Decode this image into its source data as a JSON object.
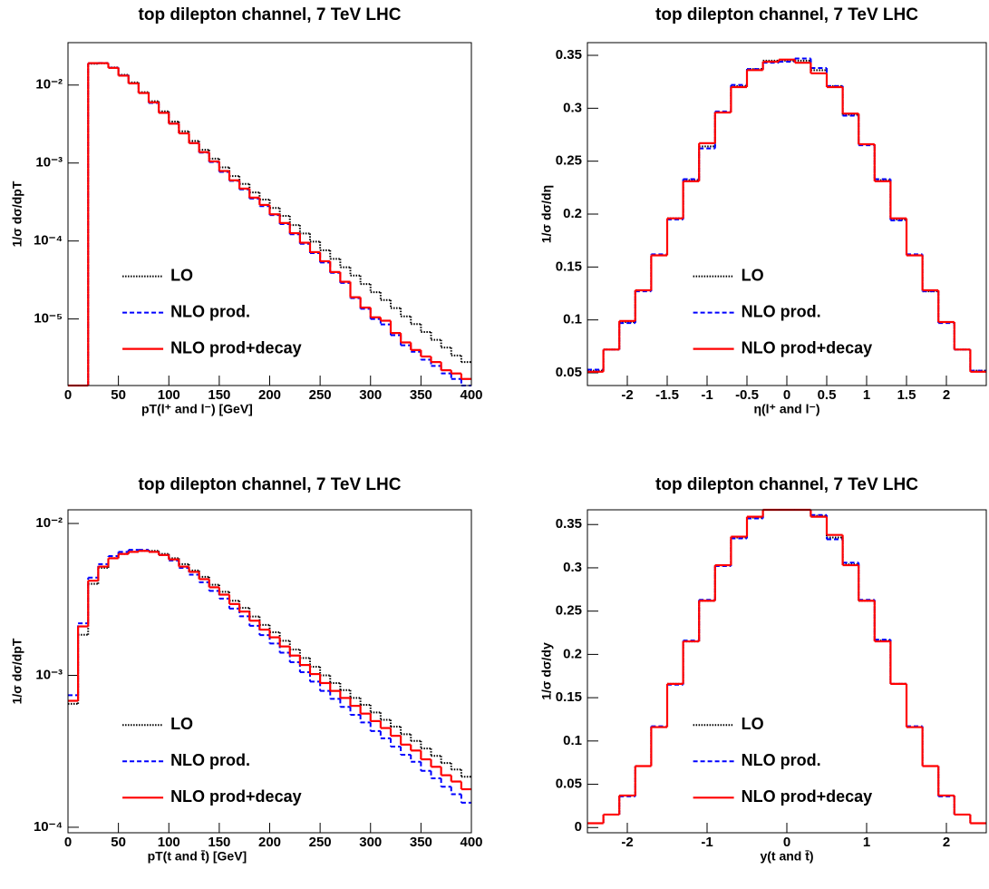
{
  "chart_data": [
    {
      "type": "histogram",
      "title": "top dilepton channel, 7 TeV LHC",
      "xlabel": "pT(l⁺ and l⁻) [GeV]",
      "ylabel": "1/σ dσ/dpT",
      "log_y": true,
      "legend": "lower-left",
      "xlim": [
        0,
        400
      ],
      "xticks": [
        0,
        50,
        100,
        150,
        200,
        250,
        300,
        350,
        400
      ],
      "ylim": [
        1.4e-06,
        0.035
      ],
      "yticks": [
        {
          "value": 1e-05,
          "label": "10⁻⁵"
        },
        {
          "value": 0.0001,
          "label": "10⁻⁴"
        },
        {
          "value": 0.001,
          "label": "10⁻³"
        },
        {
          "value": 0.01,
          "label": "10⁻²"
        }
      ],
      "bins": [
        0,
        10,
        20,
        30,
        40,
        50,
        60,
        70,
        80,
        90,
        100,
        110,
        120,
        130,
        140,
        150,
        160,
        170,
        180,
        190,
        200,
        210,
        220,
        230,
        240,
        250,
        260,
        270,
        280,
        290,
        300,
        310,
        320,
        330,
        340,
        350,
        360,
        370,
        380,
        390,
        400
      ],
      "series": [
        {
          "name": "LO",
          "color": "#000000",
          "style": "dotted",
          "values": [
            0,
            0,
            0.0188,
            0.019,
            0.0168,
            0.0135,
            0.0108,
            0.0081,
            0.0062,
            0.0046,
            0.0034,
            0.00255,
            0.00192,
            0.00148,
            0.00114,
            0.00088,
            0.00068,
            0.00054,
            0.00042,
            0.00034,
            0.000265,
            0.00021,
            0.00016,
            0.000125,
            9.8e-05,
            7.6e-05,
            5.9e-05,
            4.6e-05,
            3.6e-05,
            2.8e-05,
            2.2e-05,
            1.75e-05,
            1.38e-05,
            1.08e-05,
            8.6e-06,
            6.8e-06,
            5.4e-06,
            4.3e-06,
            3.4e-06,
            2.8e-06
          ]
        },
        {
          "name": "NLO prod.",
          "color": "#0000ff",
          "style": "dashed",
          "values": [
            0,
            0,
            0.019,
            0.0192,
            0.0167,
            0.0133,
            0.0105,
            0.0079,
            0.0059,
            0.0044,
            0.0032,
            0.0024,
            0.0018,
            0.00136,
            0.00103,
            0.00077,
            0.00059,
            0.00046,
            0.00035,
            0.00028,
            0.000215,
            0.000165,
            0.000122,
            9.2e-05,
            7e-05,
            5.3e-05,
            3.9e-05,
            2.9e-05,
            1.85e-05,
            1.35e-05,
            1e-05,
            8.5e-06,
            6.2e-06,
            4.6e-06,
            3.8e-06,
            3e-06,
            2.5e-06,
            2e-06,
            1.7e-06,
            1.4e-06
          ]
        },
        {
          "name": "NLO prod+decay",
          "color": "#ff0000",
          "style": "solid",
          "values": [
            0,
            0,
            0.0191,
            0.0191,
            0.0166,
            0.0132,
            0.0105,
            0.0079,
            0.006,
            0.0044,
            0.0032,
            0.0024,
            0.0018,
            0.00138,
            0.00105,
            0.00079,
            0.0006,
            0.00047,
            0.00036,
            0.00029,
            0.00022,
            0.00017,
            0.000126,
            9.5e-05,
            7.2e-05,
            5.5e-05,
            4e-05,
            3e-05,
            1.9e-05,
            1.4e-05,
            1.05e-05,
            9.5e-06,
            6.6e-06,
            5e-06,
            4e-06,
            3.3e-06,
            2.8e-06,
            2.2e-06,
            2e-06,
            1.7e-06
          ]
        }
      ]
    },
    {
      "type": "histogram",
      "title": "top dilepton channel, 7 TeV LHC",
      "xlabel": "η(l⁺ and l⁻)",
      "ylabel": "1/σ dσ/dη",
      "log_y": false,
      "legend": "lower-center",
      "xlim": [
        -2.5,
        2.5
      ],
      "xticks": [
        -2,
        -1.5,
        -1,
        -0.5,
        0,
        0.5,
        1,
        1.5,
        2
      ],
      "ylim": [
        0.038,
        0.362
      ],
      "yticks": [
        0.05,
        0.1,
        0.15,
        0.2,
        0.25,
        0.3,
        0.35
      ],
      "bins": [
        -2.5,
        -2.3,
        -2.1,
        -1.9,
        -1.7,
        -1.5,
        -1.3,
        -1.1,
        -0.9,
        -0.7,
        -0.5,
        -0.3,
        -0.1,
        0.1,
        0.3,
        0.5,
        0.7,
        0.9,
        1.1,
        1.3,
        1.5,
        1.7,
        1.9,
        2.1,
        2.3,
        2.5
      ],
      "series": [
        {
          "name": "LO",
          "color": "#000000",
          "style": "dotted",
          "values": [
            0.052,
            0.072,
            0.098,
            0.128,
            0.161,
            0.196,
            0.232,
            0.264,
            0.296,
            0.321,
            0.337,
            0.345,
            0.345,
            0.345,
            0.336,
            0.321,
            0.294,
            0.266,
            0.232,
            0.195,
            0.161,
            0.127,
            0.098,
            0.072,
            0.052
          ]
        },
        {
          "name": "NLO prod.",
          "color": "#0000ff",
          "style": "dashed",
          "values": [
            0.053,
            0.072,
            0.097,
            0.127,
            0.162,
            0.195,
            0.233,
            0.262,
            0.297,
            0.322,
            0.337,
            0.343,
            0.344,
            0.347,
            0.338,
            0.321,
            0.293,
            0.265,
            0.233,
            0.194,
            0.162,
            0.127,
            0.097,
            0.072,
            0.052
          ]
        },
        {
          "name": "NLO prod+decay",
          "color": "#ff0000",
          "style": "solid",
          "values": [
            0.051,
            0.072,
            0.099,
            0.128,
            0.161,
            0.196,
            0.231,
            0.267,
            0.296,
            0.32,
            0.336,
            0.344,
            0.346,
            0.343,
            0.333,
            0.32,
            0.295,
            0.266,
            0.231,
            0.196,
            0.161,
            0.128,
            0.098,
            0.072,
            0.051
          ]
        }
      ]
    },
    {
      "type": "histogram",
      "title": "top dilepton channel, 7 TeV LHC",
      "xlabel": "pT(t and t̄) [GeV]",
      "ylabel": "1/σ dσ/dpT",
      "log_y": true,
      "legend": "lower-left",
      "xlim": [
        0,
        400
      ],
      "xticks": [
        0,
        50,
        100,
        150,
        200,
        250,
        300,
        350,
        400
      ],
      "ylim": [
        9.2e-05,
        0.0123
      ],
      "yticks": [
        {
          "value": 0.0001,
          "label": "10⁻⁴"
        },
        {
          "value": 0.001,
          "label": "10⁻³"
        },
        {
          "value": 0.01,
          "label": "10⁻²"
        }
      ],
      "bins": [
        0,
        10,
        20,
        30,
        40,
        50,
        60,
        70,
        80,
        90,
        100,
        110,
        120,
        130,
        140,
        150,
        160,
        170,
        180,
        190,
        200,
        210,
        220,
        230,
        240,
        250,
        260,
        270,
        280,
        290,
        300,
        310,
        320,
        330,
        340,
        350,
        360,
        370,
        380,
        390,
        400
      ],
      "series": [
        {
          "name": "LO",
          "color": "#000000",
          "style": "dotted",
          "values": [
            0.00065,
            0.00185,
            0.004,
            0.0051,
            0.0059,
            0.0063,
            0.0065,
            0.0066,
            0.0066,
            0.0063,
            0.0059,
            0.0054,
            0.0049,
            0.00445,
            0.00395,
            0.00355,
            0.0031,
            0.00278,
            0.00244,
            0.00215,
            0.00192,
            0.00169,
            0.00148,
            0.0013,
            0.00114,
            0.001,
            0.00089,
            0.0008,
            0.00071,
            0.00064,
            0.00057,
            0.00051,
            0.00046,
            0.00041,
            0.00037,
            0.00033,
            0.000295,
            0.000265,
            0.00024,
            0.000215
          ]
        },
        {
          "name": "NLO prod.",
          "color": "#0000ff",
          "style": "dashed",
          "values": [
            0.00074,
            0.0022,
            0.0044,
            0.0054,
            0.0061,
            0.0065,
            0.0067,
            0.0067,
            0.0065,
            0.0062,
            0.0057,
            0.0051,
            0.0046,
            0.0041,
            0.0036,
            0.0032,
            0.00275,
            0.00245,
            0.00212,
            0.00184,
            0.00162,
            0.00141,
            0.00122,
            0.00105,
            0.00091,
            0.00079,
            0.0007,
            0.00062,
            0.00055,
            0.00049,
            0.00043,
            0.000385,
            0.00034,
            0.0003,
            0.00027,
            0.000235,
            0.00021,
            0.000185,
            0.000165,
            0.000145
          ]
        },
        {
          "name": "NLO prod+decay",
          "color": "#ff0000",
          "style": "solid",
          "values": [
            0.00068,
            0.0021,
            0.0042,
            0.0052,
            0.0059,
            0.0063,
            0.0065,
            0.0066,
            0.0065,
            0.0062,
            0.0058,
            0.0052,
            0.0048,
            0.0043,
            0.0038,
            0.0034,
            0.00295,
            0.00263,
            0.00229,
            0.002,
            0.00178,
            0.00155,
            0.00135,
            0.00117,
            0.00102,
            0.00089,
            0.00079,
            0.00071,
            0.00063,
            0.00056,
            0.0005,
            0.00045,
            0.0004,
            0.00035,
            0.00032,
            0.00028,
            0.00025,
            0.00022,
            0.0002,
            0.000178
          ]
        }
      ]
    },
    {
      "type": "histogram",
      "title": "top dilepton channel, 7 TeV LHC",
      "xlabel": "y(t and t̄)",
      "ylabel": "1/σ dσ/dy",
      "log_y": false,
      "legend": "lower-center",
      "xlim": [
        -2.5,
        2.5
      ],
      "xticks": [
        -2,
        -1,
        0,
        1,
        2
      ],
      "ylim": [
        -0.006,
        0.367
      ],
      "yticks": [
        0,
        0.05,
        0.1,
        0.15,
        0.2,
        0.25,
        0.3,
        0.35
      ],
      "bins": [
        -2.5,
        -2.3,
        -2.1,
        -1.9,
        -1.7,
        -1.5,
        -1.3,
        -1.1,
        -0.9,
        -0.7,
        -0.5,
        -0.3,
        -0.1,
        0.1,
        0.3,
        0.5,
        0.7,
        0.9,
        1.1,
        1.3,
        1.5,
        1.7,
        1.9,
        2.1,
        2.3,
        2.5
      ],
      "series": [
        {
          "name": "LO",
          "color": "#000000",
          "style": "dotted",
          "values": [
            0.005,
            0.015,
            0.037,
            0.071,
            0.116,
            0.166,
            0.215,
            0.262,
            0.303,
            0.335,
            0.358,
            0.374,
            0.377,
            0.374,
            0.36,
            0.335,
            0.304,
            0.262,
            0.216,
            0.166,
            0.116,
            0.071,
            0.037,
            0.015,
            0.005
          ]
        },
        {
          "name": "NLO prod.",
          "color": "#0000ff",
          "style": "dashed",
          "values": [
            0.005,
            0.015,
            0.036,
            0.071,
            0.117,
            0.165,
            0.216,
            0.263,
            0.302,
            0.334,
            0.357,
            0.373,
            0.376,
            0.375,
            0.361,
            0.333,
            0.306,
            0.263,
            0.217,
            0.166,
            0.117,
            0.071,
            0.036,
            0.015,
            0.005
          ]
        },
        {
          "name": "NLO prod+decay",
          "color": "#ff0000",
          "style": "solid",
          "values": [
            0.005,
            0.015,
            0.037,
            0.071,
            0.116,
            0.166,
            0.215,
            0.262,
            0.303,
            0.336,
            0.359,
            0.374,
            0.378,
            0.374,
            0.359,
            0.338,
            0.303,
            0.262,
            0.215,
            0.166,
            0.116,
            0.071,
            0.037,
            0.015,
            0.005
          ]
        }
      ]
    }
  ]
}
